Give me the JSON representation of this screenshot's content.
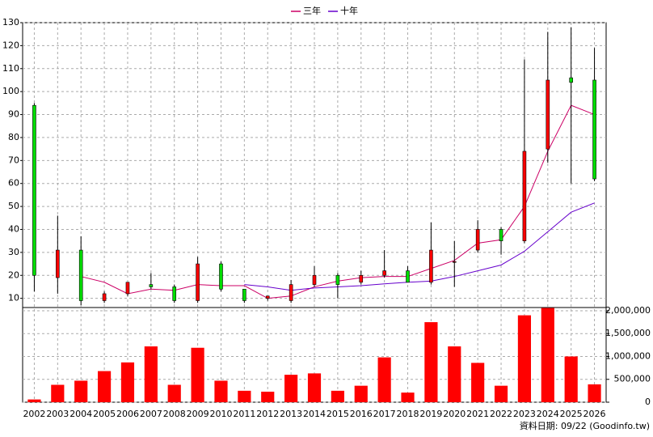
{
  "chart_data": {
    "type": "candlestick",
    "categories": [
      "2002",
      "2003",
      "2004",
      "2005",
      "2006",
      "2007",
      "2008",
      "2009",
      "2010",
      "2011",
      "2012",
      "2013",
      "2014",
      "2015",
      "2016",
      "2017",
      "2018",
      "2019",
      "2020",
      "2021",
      "2022",
      "2023",
      "2024",
      "2025",
      "2026"
    ],
    "open": [
      94,
      19,
      31,
      9,
      12,
      16,
      15,
      9,
      25,
      14,
      10,
      9,
      16,
      20,
      17,
      20,
      22,
      17,
      26,
      31,
      40,
      35,
      75,
      106,
      105
    ],
    "close": [
      20,
      31,
      9,
      12,
      17,
      15,
      9,
      25,
      14,
      9,
      11,
      16,
      20,
      16,
      20,
      22,
      17,
      31,
      26,
      40,
      35,
      74,
      105,
      104,
      62
    ],
    "high": [
      95,
      46,
      37,
      13,
      17,
      21,
      16,
      28,
      26,
      14,
      11,
      18,
      24,
      21,
      22,
      31,
      24,
      43,
      35,
      44,
      41,
      114,
      126,
      128,
      119
    ],
    "low": [
      13,
      12,
      7,
      8,
      11,
      14,
      8,
      8,
      13,
      8,
      9,
      8,
      15,
      10,
      16,
      19,
      17,
      16,
      15,
      30,
      29,
      34,
      69,
      60,
      61
    ],
    "up_color": "#ff0000",
    "down_color": "#00dd00",
    "ylim": [
      6,
      130
    ],
    "yticks": [
      10,
      20,
      30,
      40,
      50,
      60,
      70,
      80,
      90,
      100,
      110,
      120,
      130
    ],
    "grid": true,
    "lines": [
      {
        "name": "三年",
        "color": "#cc0066",
        "values": [
          null,
          null,
          19.5,
          17,
          12,
          14,
          13.5,
          16,
          15.5,
          15.5,
          10,
          11,
          15,
          17.5,
          19,
          19.5,
          19.5,
          23,
          26.5,
          34,
          35.5,
          50,
          74,
          94,
          90
        ]
      },
      {
        "name": "十年",
        "color": "#6600cc",
        "values": [
          null,
          null,
          null,
          null,
          null,
          null,
          null,
          null,
          null,
          16,
          15,
          13.5,
          14.5,
          15,
          15.5,
          16.3,
          17,
          17.5,
          19.5,
          22,
          24.5,
          30.5,
          39,
          47.5,
          51.5
        ]
      }
    ],
    "volume": {
      "color": "#ff0000",
      "values": [
        60000,
        380000,
        470000,
        680000,
        870000,
        1220000,
        380000,
        1190000,
        470000,
        250000,
        230000,
        600000,
        630000,
        250000,
        360000,
        980000,
        210000,
        1750000,
        1220000,
        860000,
        360000,
        1900000,
        2060000,
        1000000,
        390000
      ],
      "ylim": [
        0,
        2070000
      ],
      "yticks": [
        0,
        {
          "value": 500000,
          "label": "500,000"
        },
        {
          "value": 1000000,
          "label": "1,000,000"
        },
        {
          "value": 1500000,
          "label": "1,500,000"
        },
        {
          "value": 2000000,
          "label": "2,000,000"
        }
      ]
    },
    "note": "資料日期: 09/22 (Goodinfo.tw)"
  }
}
